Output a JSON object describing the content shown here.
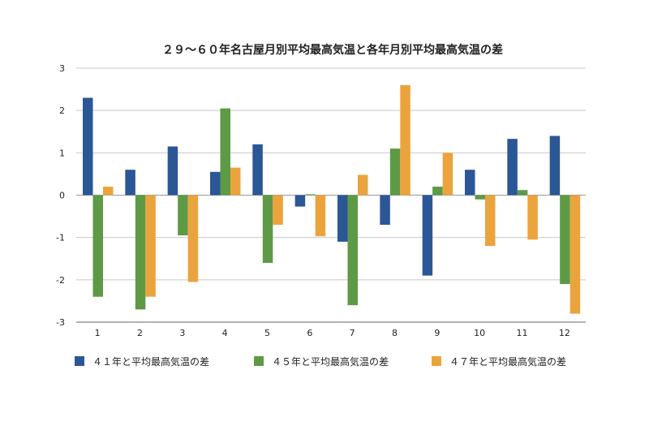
{
  "chart_data": {
    "type": "bar",
    "title": "２９〜６０年名古屋月別平均最高気温と各年月別平均最高気温の差",
    "xlabel": "",
    "ylabel": "",
    "ylim": [
      -3,
      3
    ],
    "yticks": [
      3,
      2,
      1,
      0,
      -1,
      -2,
      -3
    ],
    "categories": [
      "1",
      "2",
      "3",
      "4",
      "5",
      "6",
      "7",
      "8",
      "9",
      "10",
      "11",
      "12"
    ],
    "grid": true,
    "legend_position": "bottom",
    "series": [
      {
        "name": "４１年と平均最高気温の差",
        "color": "#2b5797",
        "values": [
          2.3,
          0.6,
          1.15,
          0.55,
          1.2,
          -0.27,
          -1.1,
          -0.7,
          -1.9,
          0.6,
          1.33,
          1.4
        ]
      },
      {
        "name": "４５年と平均最高気温の差",
        "color": "#5e9a45",
        "values": [
          -2.4,
          -2.7,
          -0.95,
          2.05,
          -1.6,
          0.02,
          -2.6,
          1.1,
          0.2,
          -0.1,
          0.12,
          -2.1
        ]
      },
      {
        "name": "４７年と平均最高気温の差",
        "color": "#eba43d",
        "values": [
          0.2,
          -2.4,
          -2.05,
          0.65,
          -0.7,
          -0.97,
          0.48,
          2.6,
          1.0,
          -1.2,
          -1.05,
          -2.8
        ]
      }
    ]
  }
}
